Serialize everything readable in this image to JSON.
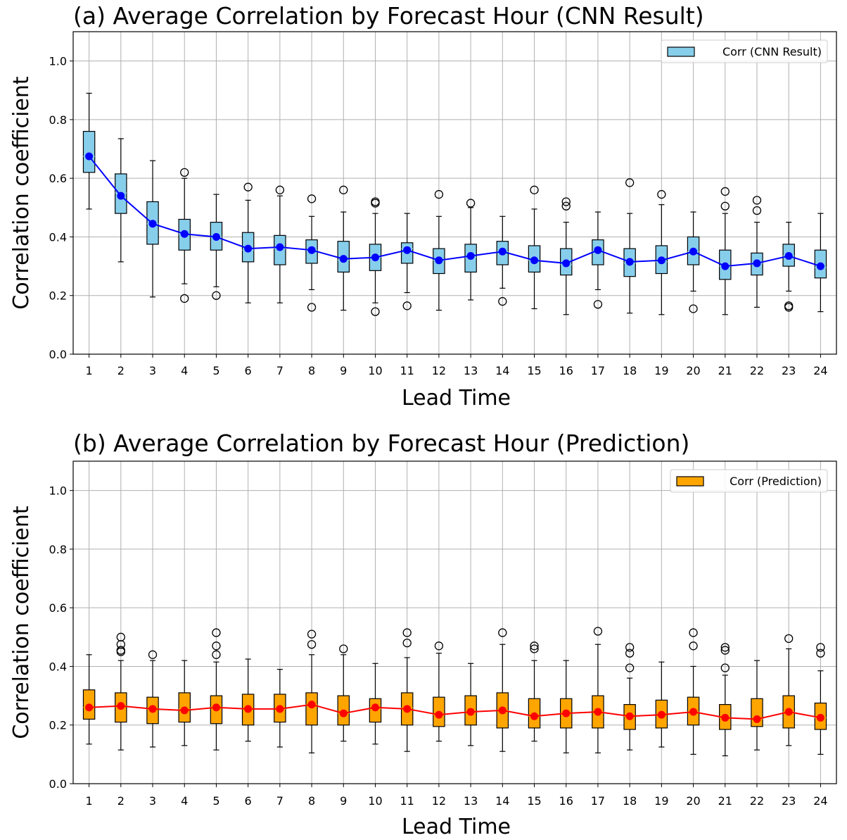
{
  "chart_data": [
    {
      "type": "box",
      "title": "(a) Average Correlation by Forecast Hour (CNN Result)",
      "xlabel": "Lead Time",
      "ylabel": "Correlation coefficient",
      "ylim": [
        0.0,
        1.1
      ],
      "yticks": [
        "0.0",
        "0.2",
        "0.4",
        "0.6",
        "0.8",
        "1.0"
      ],
      "categories": [
        "1",
        "2",
        "3",
        "4",
        "5",
        "6",
        "7",
        "8",
        "9",
        "10",
        "11",
        "12",
        "13",
        "14",
        "15",
        "16",
        "17",
        "18",
        "19",
        "20",
        "21",
        "22",
        "23",
        "24"
      ],
      "grid": true,
      "legend": {
        "label": "Corr (CNN Result)",
        "location": "upper right"
      },
      "box_color": "#87ceeb",
      "line_color": "#0000ff",
      "boxes": [
        {
          "whislo": 0.495,
          "q1": 0.62,
          "med": 0.675,
          "q3": 0.76,
          "whishi": 0.89,
          "fliers": []
        },
        {
          "whislo": 0.315,
          "q1": 0.48,
          "med": 0.55,
          "q3": 0.615,
          "whishi": 0.735,
          "fliers": []
        },
        {
          "whislo": 0.195,
          "q1": 0.375,
          "med": 0.445,
          "q3": 0.52,
          "whishi": 0.66,
          "fliers": []
        },
        {
          "whislo": 0.24,
          "q1": 0.355,
          "med": 0.41,
          "q3": 0.46,
          "whishi": 0.6,
          "fliers": [
            0.62,
            0.19
          ]
        },
        {
          "whislo": 0.23,
          "q1": 0.355,
          "med": 0.4,
          "q3": 0.45,
          "whishi": 0.545,
          "fliers": [
            0.2
          ]
        },
        {
          "whislo": 0.175,
          "q1": 0.315,
          "med": 0.355,
          "q3": 0.415,
          "whishi": 0.525,
          "fliers": [
            0.57
          ]
        },
        {
          "whislo": 0.175,
          "q1": 0.305,
          "med": 0.36,
          "q3": 0.405,
          "whishi": 0.54,
          "fliers": [
            0.56
          ]
        },
        {
          "whislo": 0.22,
          "q1": 0.31,
          "med": 0.355,
          "q3": 0.39,
          "whishi": 0.47,
          "fliers": [
            0.53,
            0.16
          ]
        },
        {
          "whislo": 0.15,
          "q1": 0.28,
          "med": 0.32,
          "q3": 0.385,
          "whishi": 0.485,
          "fliers": [
            0.56
          ]
        },
        {
          "whislo": 0.175,
          "q1": 0.285,
          "med": 0.33,
          "q3": 0.375,
          "whishi": 0.48,
          "fliers": [
            0.52,
            0.515,
            0.145
          ]
        },
        {
          "whislo": 0.21,
          "q1": 0.31,
          "med": 0.36,
          "q3": 0.38,
          "whishi": 0.48,
          "fliers": [
            0.165
          ]
        },
        {
          "whislo": 0.15,
          "q1": 0.275,
          "med": 0.32,
          "q3": 0.36,
          "whishi": 0.47,
          "fliers": [
            0.545
          ]
        },
        {
          "whislo": 0.185,
          "q1": 0.28,
          "med": 0.33,
          "q3": 0.375,
          "whishi": 0.5,
          "fliers": [
            0.515
          ]
        },
        {
          "whislo": 0.225,
          "q1": 0.305,
          "med": 0.35,
          "q3": 0.385,
          "whishi": 0.47,
          "fliers": [
            0.18
          ]
        },
        {
          "whislo": 0.155,
          "q1": 0.28,
          "med": 0.32,
          "q3": 0.37,
          "whishi": 0.495,
          "fliers": [
            0.56
          ]
        },
        {
          "whislo": 0.135,
          "q1": 0.27,
          "med": 0.305,
          "q3": 0.36,
          "whishi": 0.45,
          "fliers": [
            0.52,
            0.505
          ]
        },
        {
          "whislo": 0.22,
          "q1": 0.305,
          "med": 0.35,
          "q3": 0.39,
          "whishi": 0.485,
          "fliers": [
            0.17
          ]
        },
        {
          "whislo": 0.14,
          "q1": 0.265,
          "med": 0.31,
          "q3": 0.36,
          "whishi": 0.48,
          "fliers": [
            0.585
          ]
        },
        {
          "whislo": 0.135,
          "q1": 0.275,
          "med": 0.315,
          "q3": 0.37,
          "whishi": 0.51,
          "fliers": [
            0.545
          ]
        },
        {
          "whislo": 0.215,
          "q1": 0.305,
          "med": 0.35,
          "q3": 0.4,
          "whishi": 0.485,
          "fliers": [
            0.155
          ]
        },
        {
          "whislo": 0.135,
          "q1": 0.255,
          "med": 0.3,
          "q3": 0.355,
          "whishi": 0.48,
          "fliers": [
            0.555,
            0.505
          ]
        },
        {
          "whislo": 0.16,
          "q1": 0.27,
          "med": 0.31,
          "q3": 0.345,
          "whishi": 0.45,
          "fliers": [
            0.525,
            0.49
          ]
        },
        {
          "whislo": 0.215,
          "q1": 0.3,
          "med": 0.335,
          "q3": 0.375,
          "whishi": 0.45,
          "fliers": [
            0.165,
            0.16
          ]
        },
        {
          "whislo": 0.145,
          "q1": 0.26,
          "med": 0.295,
          "q3": 0.355,
          "whishi": 0.48,
          "fliers": []
        }
      ],
      "mean_line": [
        0.675,
        0.54,
        0.445,
        0.41,
        0.4,
        0.36,
        0.365,
        0.355,
        0.325,
        0.33,
        0.355,
        0.32,
        0.335,
        0.35,
        0.32,
        0.31,
        0.355,
        0.315,
        0.32,
        0.35,
        0.3,
        0.31,
        0.335,
        0.3
      ]
    },
    {
      "type": "box",
      "title": "(b) Average Correlation by Forecast Hour (Prediction)",
      "xlabel": "Lead Time",
      "ylabel": "Correlation coefficient",
      "ylim": [
        0.0,
        1.1
      ],
      "yticks": [
        "0.0",
        "0.2",
        "0.4",
        "0.6",
        "0.8",
        "1.0"
      ],
      "categories": [
        "1",
        "2",
        "3",
        "4",
        "5",
        "6",
        "7",
        "8",
        "9",
        "10",
        "11",
        "12",
        "13",
        "14",
        "15",
        "16",
        "17",
        "18",
        "19",
        "20",
        "21",
        "22",
        "23",
        "24"
      ],
      "grid": true,
      "legend": {
        "label": "Corr (Prediction)",
        "location": "upper right"
      },
      "box_color": "#ffa500",
      "line_color": "#ff0000",
      "boxes": [
        {
          "whislo": 0.135,
          "q1": 0.22,
          "med": 0.26,
          "q3": 0.32,
          "whishi": 0.44,
          "fliers": []
        },
        {
          "whislo": 0.115,
          "q1": 0.21,
          "med": 0.265,
          "q3": 0.31,
          "whishi": 0.42,
          "fliers": [
            0.5,
            0.475,
            0.455,
            0.45
          ]
        },
        {
          "whislo": 0.125,
          "q1": 0.205,
          "med": 0.255,
          "q3": 0.295,
          "whishi": 0.42,
          "fliers": [
            0.44
          ]
        },
        {
          "whislo": 0.13,
          "q1": 0.21,
          "med": 0.255,
          "q3": 0.31,
          "whishi": 0.42,
          "fliers": []
        },
        {
          "whislo": 0.115,
          "q1": 0.205,
          "med": 0.26,
          "q3": 0.3,
          "whishi": 0.415,
          "fliers": [
            0.515,
            0.47,
            0.44
          ]
        },
        {
          "whislo": 0.145,
          "q1": 0.2,
          "med": 0.255,
          "q3": 0.305,
          "whishi": 0.425,
          "fliers": []
        },
        {
          "whislo": 0.125,
          "q1": 0.21,
          "med": 0.255,
          "q3": 0.305,
          "whishi": 0.39,
          "fliers": []
        },
        {
          "whislo": 0.105,
          "q1": 0.2,
          "med": 0.27,
          "q3": 0.31,
          "whishi": 0.44,
          "fliers": [
            0.51,
            0.475
          ]
        },
        {
          "whislo": 0.145,
          "q1": 0.2,
          "med": 0.24,
          "q3": 0.3,
          "whishi": 0.44,
          "fliers": [
            0.46
          ]
        },
        {
          "whislo": 0.135,
          "q1": 0.21,
          "med": 0.255,
          "q3": 0.29,
          "whishi": 0.41,
          "fliers": []
        },
        {
          "whislo": 0.11,
          "q1": 0.2,
          "med": 0.26,
          "q3": 0.31,
          "whishi": 0.43,
          "fliers": [
            0.515,
            0.48
          ]
        },
        {
          "whislo": 0.145,
          "q1": 0.195,
          "med": 0.235,
          "q3": 0.295,
          "whishi": 0.445,
          "fliers": [
            0.47
          ]
        },
        {
          "whislo": 0.13,
          "q1": 0.2,
          "med": 0.245,
          "q3": 0.3,
          "whishi": 0.41,
          "fliers": []
        },
        {
          "whislo": 0.11,
          "q1": 0.19,
          "med": 0.25,
          "q3": 0.31,
          "whishi": 0.475,
          "fliers": [
            0.515
          ]
        },
        {
          "whislo": 0.145,
          "q1": 0.19,
          "med": 0.23,
          "q3": 0.29,
          "whishi": 0.42,
          "fliers": [
            0.47,
            0.46
          ]
        },
        {
          "whislo": 0.105,
          "q1": 0.19,
          "med": 0.24,
          "q3": 0.29,
          "whishi": 0.42,
          "fliers": []
        },
        {
          "whislo": 0.105,
          "q1": 0.19,
          "med": 0.245,
          "q3": 0.3,
          "whishi": 0.475,
          "fliers": [
            0.52
          ]
        },
        {
          "whislo": 0.115,
          "q1": 0.185,
          "med": 0.23,
          "q3": 0.27,
          "whishi": 0.36,
          "fliers": [
            0.465,
            0.445,
            0.395
          ]
        },
        {
          "whislo": 0.125,
          "q1": 0.19,
          "med": 0.235,
          "q3": 0.285,
          "whishi": 0.415,
          "fliers": []
        },
        {
          "whislo": 0.1,
          "q1": 0.2,
          "med": 0.245,
          "q3": 0.295,
          "whishi": 0.4,
          "fliers": [
            0.515,
            0.47
          ]
        },
        {
          "whislo": 0.095,
          "q1": 0.185,
          "med": 0.225,
          "q3": 0.27,
          "whishi": 0.37,
          "fliers": [
            0.465,
            0.455,
            0.395
          ]
        },
        {
          "whislo": 0.115,
          "q1": 0.195,
          "med": 0.22,
          "q3": 0.29,
          "whishi": 0.42,
          "fliers": []
        },
        {
          "whislo": 0.13,
          "q1": 0.19,
          "med": 0.245,
          "q3": 0.3,
          "whishi": 0.46,
          "fliers": [
            0.495
          ]
        },
        {
          "whislo": 0.1,
          "q1": 0.185,
          "med": 0.225,
          "q3": 0.275,
          "whishi": 0.385,
          "fliers": [
            0.465,
            0.445
          ]
        }
      ],
      "mean_line": [
        0.26,
        0.265,
        0.255,
        0.25,
        0.26,
        0.255,
        0.255,
        0.27,
        0.24,
        0.26,
        0.255,
        0.235,
        0.245,
        0.25,
        0.23,
        0.24,
        0.245,
        0.23,
        0.235,
        0.245,
        0.225,
        0.22,
        0.245,
        0.225
      ]
    }
  ]
}
